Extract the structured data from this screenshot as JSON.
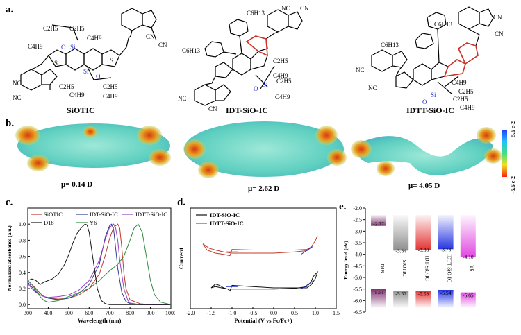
{
  "labels": {
    "a": "a.",
    "b": "b.",
    "c": "c.",
    "d": "d.",
    "e": "e."
  },
  "molecules": {
    "names": [
      "SiOTIC",
      "IDT-SiO-IC",
      "IDTT-SiO-IC"
    ],
    "substituents": {
      "c2h5": "C2H5",
      "c4h9": "C4H9",
      "c6h13": "C6H13",
      "si": "Si",
      "o": "O",
      "s": "S",
      "cn": "CN",
      "nc": "NC"
    }
  },
  "esp": {
    "dipoles": [
      "μ= 0.14 D",
      "μ= 2.62 D",
      "μ= 4.05 D"
    ],
    "scale_top": "5.6 e-2",
    "scale_bottom": "5.6 e-2",
    "scale_top_sign": "",
    "scale_bottom_sign": "-"
  },
  "chart_data": [
    {
      "id": "c",
      "type": "line",
      "xlabel": "Wavelength (nm)",
      "ylabel": "Normalized absorbance (a.u.)",
      "xlim": [
        300,
        1000
      ],
      "ylim": [
        -0.05,
        1.2
      ],
      "xticks": [
        300,
        400,
        500,
        600,
        700,
        800,
        900,
        1000
      ],
      "yticks": [
        0.0,
        0.2,
        0.4,
        0.6,
        0.8,
        1.0
      ],
      "legend_position": "top",
      "series": [
        {
          "name": "SiOTIC",
          "color": "#c0392b",
          "x": [
            300,
            320,
            340,
            360,
            380,
            400,
            450,
            500,
            550,
            600,
            650,
            680,
            700,
            720,
            740,
            750,
            760,
            770,
            780,
            800,
            850,
            900,
            1000
          ],
          "y": [
            0.3,
            0.25,
            0.2,
            0.14,
            0.1,
            0.08,
            0.07,
            0.08,
            0.12,
            0.2,
            0.38,
            0.62,
            0.82,
            0.96,
            1.0,
            0.95,
            0.7,
            0.4,
            0.2,
            0.06,
            0.01,
            0.0,
            0.0
          ]
        },
        {
          "name": "IDT-SiO-IC",
          "color": "#2c3e8f",
          "x": [
            300,
            320,
            340,
            360,
            380,
            400,
            450,
            500,
            550,
            600,
            650,
            680,
            700,
            710,
            720,
            730,
            740,
            760,
            780,
            800,
            850,
            1000
          ],
          "y": [
            0.28,
            0.22,
            0.16,
            0.12,
            0.1,
            0.08,
            0.06,
            0.08,
            0.14,
            0.25,
            0.5,
            0.85,
            0.98,
            1.0,
            0.93,
            0.7,
            0.45,
            0.15,
            0.04,
            0.01,
            0.0,
            0.0
          ]
        },
        {
          "name": "IDTT-SiO-IC",
          "color": "#9b3fbf",
          "x": [
            300,
            320,
            340,
            360,
            380,
            400,
            450,
            500,
            550,
            600,
            650,
            680,
            700,
            720,
            730,
            740,
            750,
            770,
            790,
            800,
            850,
            1000
          ],
          "y": [
            0.26,
            0.2,
            0.15,
            0.12,
            0.1,
            0.09,
            0.1,
            0.12,
            0.18,
            0.3,
            0.55,
            0.82,
            0.96,
            1.0,
            0.95,
            0.8,
            0.55,
            0.2,
            0.05,
            0.02,
            0.0,
            0.0
          ]
        },
        {
          "name": "D18",
          "color": "#111111",
          "x": [
            300,
            320,
            340,
            360,
            380,
            400,
            420,
            450,
            480,
            500,
            520,
            540,
            560,
            580,
            590,
            600,
            620,
            640,
            660,
            680,
            700,
            750,
            800,
            1000
          ],
          "y": [
            0.3,
            0.32,
            0.3,
            0.25,
            0.28,
            0.3,
            0.32,
            0.38,
            0.5,
            0.62,
            0.76,
            0.88,
            0.95,
            1.0,
            0.99,
            0.9,
            0.55,
            0.2,
            0.05,
            0.01,
            0.0,
            0.0,
            0.0,
            0.0
          ]
        },
        {
          "name": "Y6",
          "color": "#2e8b3e",
          "x": [
            300,
            320,
            340,
            360,
            380,
            400,
            450,
            500,
            550,
            600,
            650,
            700,
            740,
            770,
            800,
            820,
            840,
            860,
            880,
            900,
            920,
            950,
            1000
          ],
          "y": [
            0.3,
            0.25,
            0.18,
            0.1,
            0.05,
            0.03,
            0.05,
            0.1,
            0.15,
            0.2,
            0.3,
            0.42,
            0.5,
            0.6,
            0.8,
            0.95,
            1.0,
            0.9,
            0.6,
            0.3,
            0.12,
            0.03,
            0.0
          ]
        }
      ]
    },
    {
      "id": "d",
      "type": "line",
      "xlabel": "Potential (V vs Fc/Fc+)",
      "ylabel": "Current",
      "xlim": [
        -2.0,
        1.5
      ],
      "xticks": [
        -2.0,
        -1.5,
        -1.0,
        -0.5,
        0.0,
        0.5,
        1.0,
        1.5
      ],
      "legend_position": "top-left",
      "series": [
        {
          "name": "IDT-SiO-IC",
          "color": "#111111",
          "x": [
            -1.05,
            -1.1,
            -1.2,
            -1.3,
            -1.4,
            -1.5,
            -1.4,
            -1.25,
            -1.1,
            -1.0,
            -0.5,
            0.0,
            0.5,
            0.8,
            0.9,
            0.95,
            1.0,
            1.05,
            1.0,
            0.9,
            0.8,
            0.5,
            0.0,
            -0.5,
            -1.0,
            -1.05
          ],
          "y": [
            -0.05,
            -0.02,
            0.0,
            0.04,
            0.06,
            0.0,
            0.02,
            0.0,
            -0.02,
            -0.02,
            -0.02,
            -0.02,
            -0.01,
            0.02,
            0.1,
            0.18,
            0.22,
            0.25,
            0.15,
            0.05,
            0.0,
            0.0,
            0.0,
            0.02,
            0.04,
            -0.05
          ]
        },
        {
          "name": "IDTT-SiO-IC",
          "color": "#c0392b",
          "x": [
            -1.05,
            -1.2,
            -1.4,
            -1.6,
            -1.7,
            -1.55,
            -1.4,
            -1.2,
            -1.0,
            -0.5,
            0.0,
            0.5,
            0.8,
            0.9,
            1.0,
            1.05,
            1.0,
            0.9,
            0.8,
            0.5,
            0.0,
            -0.5,
            -1.0,
            -1.05
          ],
          "y": [
            -0.04,
            -0.02,
            0.0,
            0.05,
            0.15,
            0.08,
            0.05,
            0.02,
            0.0,
            0.0,
            0.0,
            0.02,
            0.04,
            0.1,
            0.2,
            0.28,
            0.2,
            0.1,
            0.06,
            0.05,
            0.05,
            0.05,
            0.06,
            -0.04
          ]
        }
      ]
    },
    {
      "id": "e",
      "type": "bar",
      "ylabel": "Energy level (eV)",
      "ylim": [
        -6.5,
        -2.0
      ],
      "yticks": [
        -2.0,
        -2.5,
        -3.0,
        -3.5,
        -4.0,
        -4.5,
        -5.0,
        -5.5,
        -6.0,
        -6.5
      ],
      "categories": [
        "D18",
        "SiOTIC",
        "IDT-SiO-IC",
        "IDTT-SiO-IC",
        "Y6"
      ],
      "lumo": [
        -2.77,
        -3.84,
        -3.8,
        -3.78,
        -4.1
      ],
      "homo": [
        -5.51,
        -5.57,
        -5.58,
        -5.54,
        -5.65
      ],
      "lumo_labels": [
        "-2.77",
        "-3.84",
        "-3.80",
        "-3.78",
        "-4.10"
      ],
      "homo_labels": [
        "-5.51",
        "-5.57",
        "-5.58",
        "-5.54",
        "-5.65"
      ],
      "colors": [
        "#7a2a6a",
        "#888888",
        "#e22a2a",
        "#1a2be0",
        "#e040e0"
      ]
    }
  ]
}
